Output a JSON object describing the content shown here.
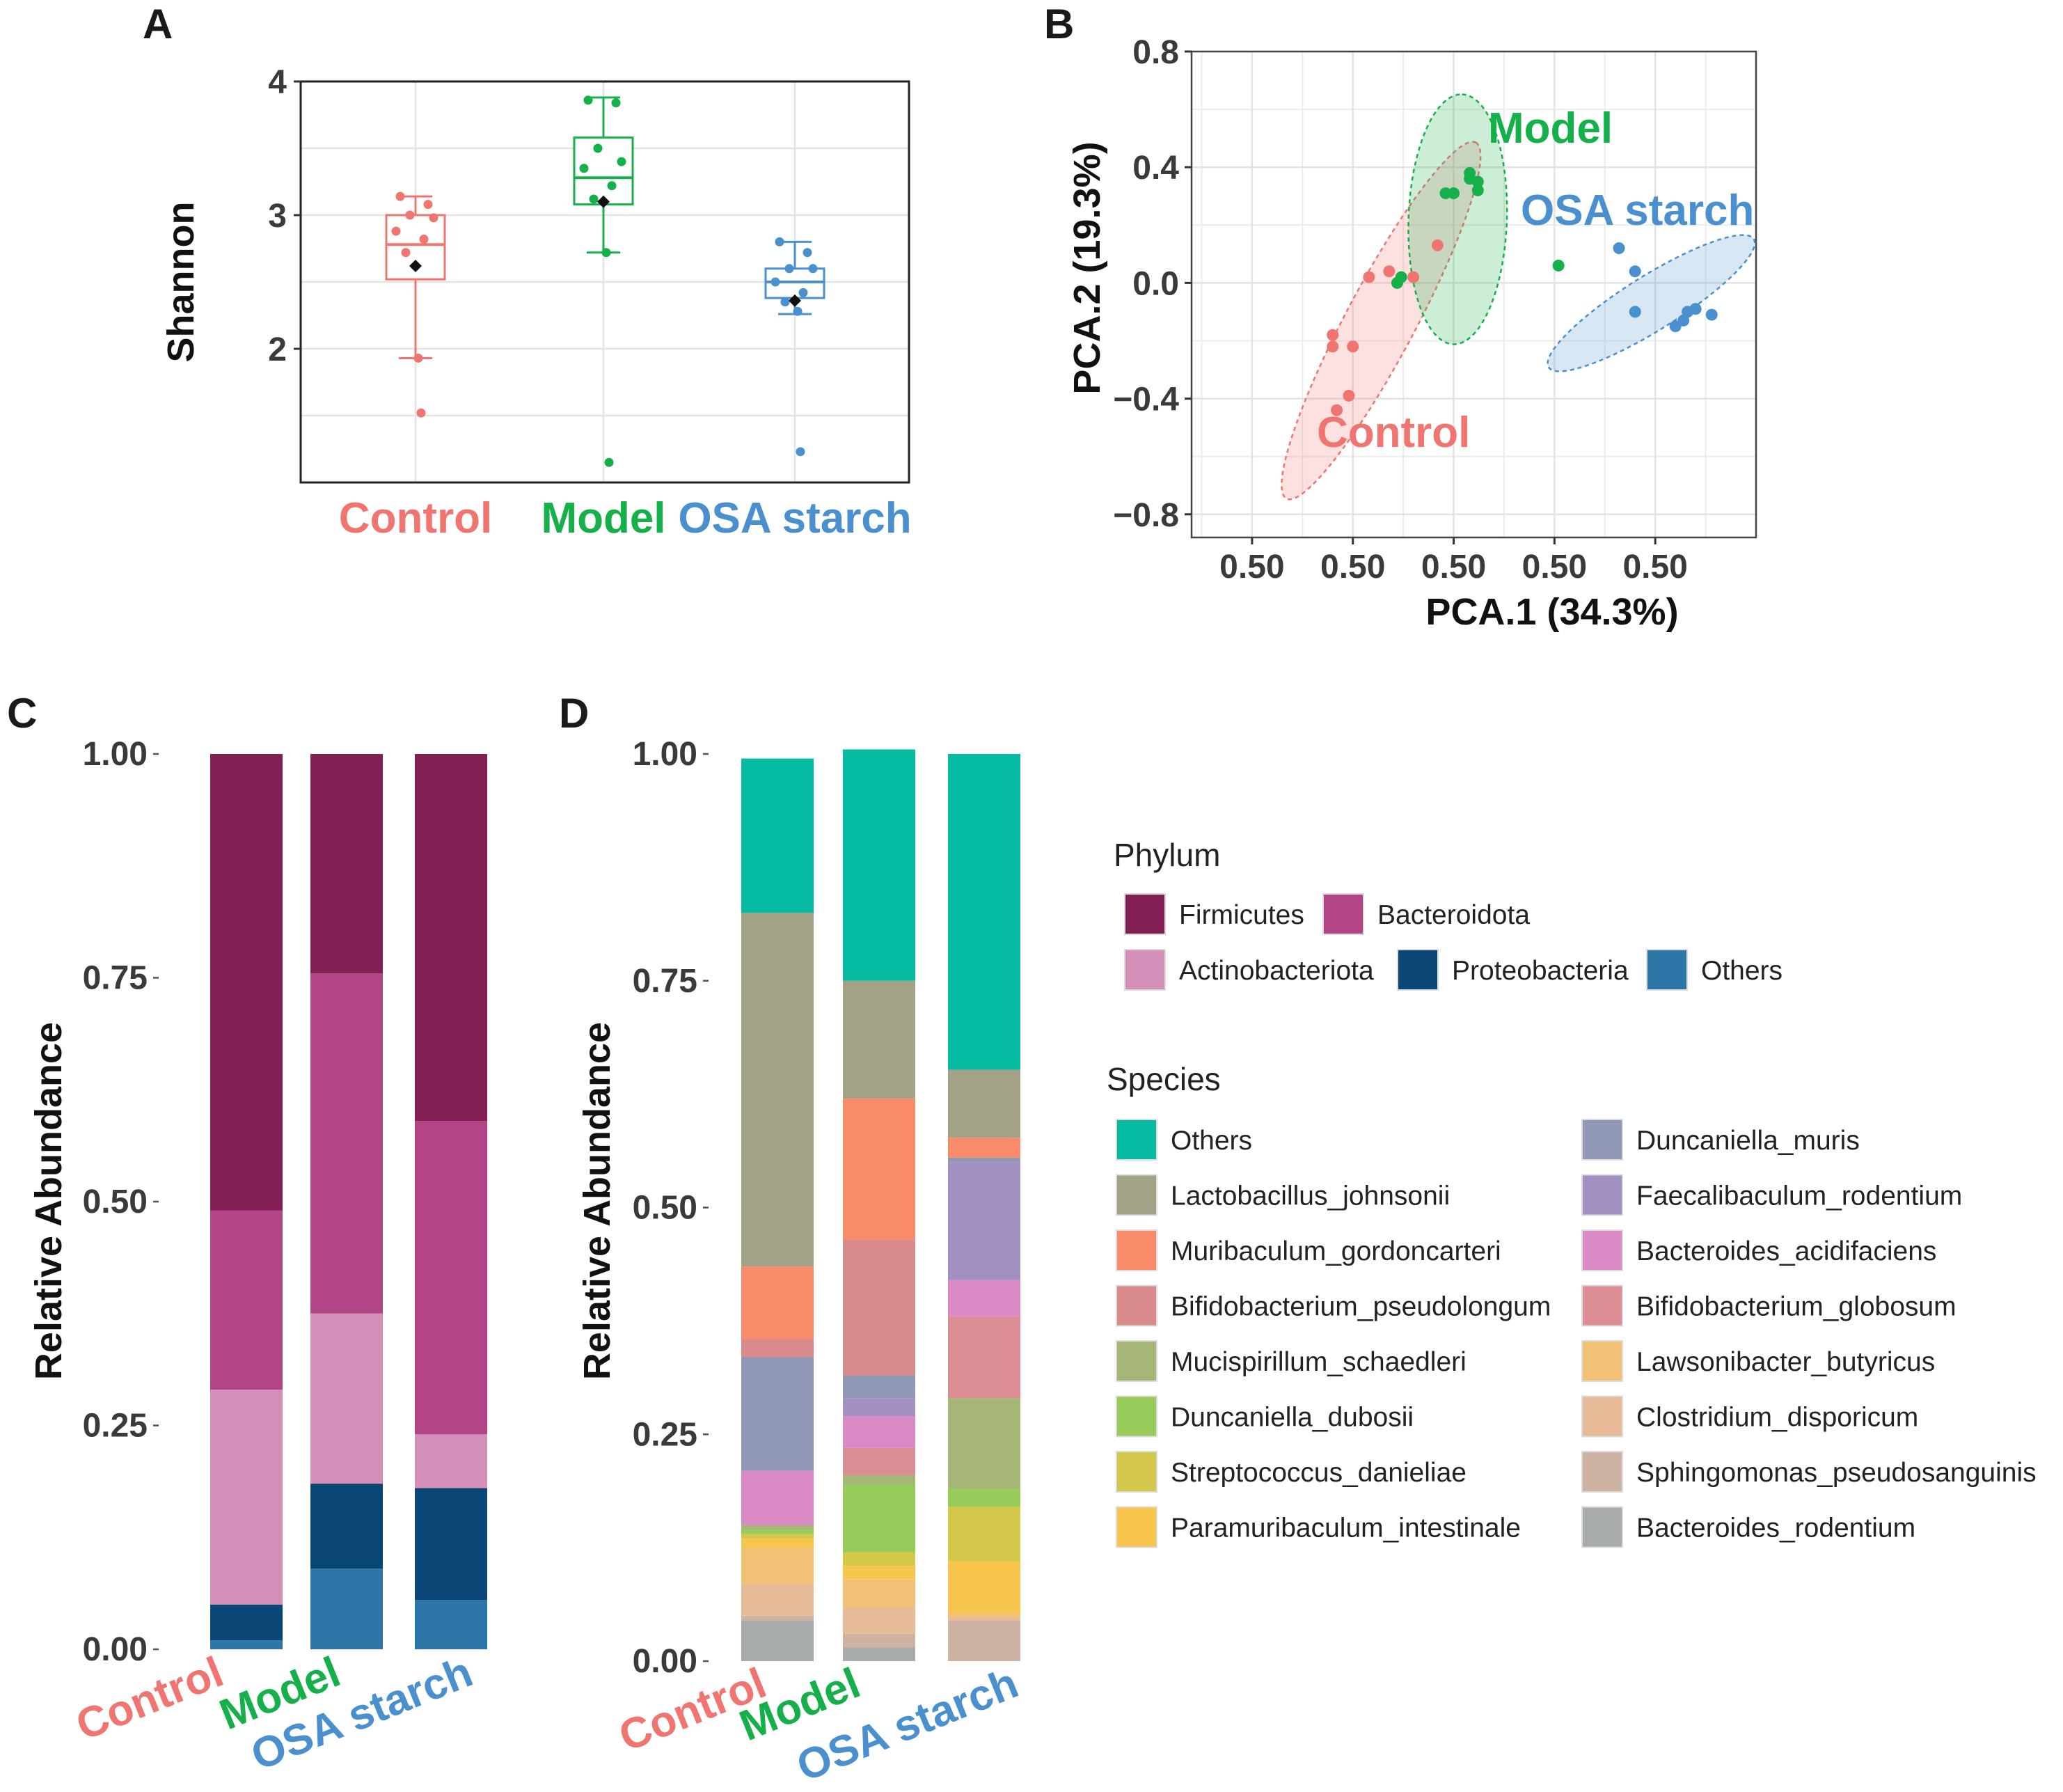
{
  "colors": {
    "control": "#f07570",
    "model": "#16b04b",
    "osa": "#4a90cf"
  },
  "chart_data": [
    {
      "panel": "A",
      "type": "box",
      "ylabel": "Shannon",
      "yticks": [
        2,
        3,
        4
      ],
      "ylim": [
        1.0,
        4.0
      ],
      "groups": [
        {
          "name": "Control",
          "color": "#f07570",
          "whisker_low": 1.93,
          "q1": 2.52,
          "median": 2.78,
          "q3": 3.0,
          "whisker_high": 3.14,
          "mean": 2.62,
          "points": [
            3.14,
            3.08,
            3.0,
            2.98,
            2.88,
            2.82,
            2.72,
            1.93,
            1.52
          ]
        },
        {
          "name": "Model",
          "color": "#16b04b",
          "whisker_low": 2.72,
          "q1": 3.08,
          "median": 3.28,
          "q3": 3.58,
          "whisker_high": 3.88,
          "mean": 3.1,
          "points": [
            3.86,
            3.84,
            3.5,
            3.4,
            3.35,
            3.22,
            3.12,
            2.72,
            1.15
          ]
        },
        {
          "name": "OSA starch",
          "color": "#4a90cf",
          "whisker_low": 2.26,
          "q1": 2.38,
          "median": 2.5,
          "q3": 2.6,
          "whisker_high": 2.8,
          "mean": 2.36,
          "points": [
            2.8,
            2.72,
            2.6,
            2.6,
            2.5,
            2.42,
            2.35,
            2.28,
            1.23
          ]
        }
      ]
    },
    {
      "panel": "B",
      "type": "scatter",
      "xlabel": "PCA.1 (34.3%)",
      "ylabel": "PCA.2 (19.3%)",
      "xtick_labels": [
        "0.50",
        "0.50",
        "0.50",
        "0.50",
        "0.50"
      ],
      "yticks": [
        "0.8",
        "0.4",
        "0.0",
        "−0.4",
        "−0.8"
      ],
      "xlim": [
        -0.65,
        0.75
      ],
      "ylim": [
        -0.88,
        0.8
      ],
      "groups": [
        {
          "name": "Control",
          "color": "#f07570",
          "points": [
            [
              -0.3,
              -0.18
            ],
            [
              -0.3,
              -0.22
            ],
            [
              -0.25,
              -0.22
            ],
            [
              -0.26,
              -0.39
            ],
            [
              -0.29,
              -0.44
            ],
            [
              -0.16,
              0.04
            ],
            [
              -0.1,
              0.02
            ],
            [
              -0.04,
              0.13
            ],
            [
              -0.21,
              0.02
            ]
          ],
          "ellipse": {
            "cx": -0.18,
            "cy": -0.13,
            "rx": 0.5,
            "ry": 0.12,
            "angle": -62
          }
        },
        {
          "name": "Model",
          "color": "#16b04b",
          "points": [
            [
              0.04,
              0.38
            ],
            [
              0.06,
              0.35
            ],
            [
              0.06,
              0.32
            ],
            [
              0.0,
              0.31
            ],
            [
              -0.02,
              0.31
            ],
            [
              0.04,
              0.36
            ],
            [
              -0.14,
              0.0
            ],
            [
              -0.13,
              0.02
            ],
            [
              0.26,
              0.06
            ]
          ],
          "ellipse": {
            "cx": 0.01,
            "cy": 0.22,
            "rx": 0.31,
            "ry": 0.17,
            "angle": -88
          }
        },
        {
          "name": "OSA starch",
          "color": "#4a90cf",
          "points": [
            [
              0.41,
              0.12
            ],
            [
              0.45,
              0.04
            ],
            [
              0.45,
              -0.1
            ],
            [
              0.55,
              -0.15
            ],
            [
              0.57,
              -0.13
            ],
            [
              0.58,
              -0.1
            ],
            [
              0.6,
              -0.09
            ],
            [
              0.64,
              -0.11
            ]
          ],
          "ellipse": {
            "cx": 0.49,
            "cy": -0.07,
            "rx": 0.3,
            "ry": 0.094,
            "angle": -32
          }
        }
      ],
      "labels": [
        {
          "text": "Model",
          "color": "#16b04b"
        },
        {
          "text": "OSA starch",
          "color": "#4a90cf"
        },
        {
          "text": "Control",
          "color": "#f07570"
        }
      ]
    },
    {
      "panel": "C",
      "type": "stacked_bar",
      "ylabel": "Relative Abundance",
      "yticks": [
        "0.00",
        "0.25",
        "0.50",
        "0.75",
        "1.00"
      ],
      "categories": [
        "Control",
        "Model",
        "OSA starch"
      ],
      "legend_title": "Phylum",
      "series": [
        {
          "name": "Others",
          "color": "#2c77a8",
          "values": [
            0.01,
            0.09,
            0.055
          ]
        },
        {
          "name": "Proteobacteria",
          "color": "#0a4777",
          "values": [
            0.04,
            0.095,
            0.125
          ]
        },
        {
          "name": "Actinobacteriota",
          "color": "#d38fb7",
          "values": [
            0.24,
            0.19,
            0.06
          ]
        },
        {
          "name": "Bacteroidota",
          "color": "#b24586",
          "values": [
            0.2,
            0.38,
            0.35
          ]
        },
        {
          "name": "Firmicutes",
          "color": "#822055",
          "values": [
            0.51,
            0.245,
            0.41
          ]
        }
      ],
      "legend_order": [
        "Firmicutes",
        "Bacteroidota",
        "Actinobacteriota",
        "Proteobacteria",
        "Others"
      ]
    },
    {
      "panel": "D",
      "type": "stacked_bar",
      "ylabel": "Relative Abundance",
      "yticks": [
        "0.00",
        "0.25",
        "0.50",
        "0.75",
        "1.00"
      ],
      "categories": [
        "Control",
        "Model",
        "OSA starch"
      ],
      "legend_title": "Species",
      "series": [
        {
          "name": "Bacteroides_rodentium",
          "color": "#a8abab",
          "values": [
            0.045,
            0.015,
            0.0
          ]
        },
        {
          "name": "Sphingomonas_pseudosanguinis",
          "color": "#ceb3a4",
          "values": [
            0.005,
            0.015,
            0.045
          ]
        },
        {
          "name": "Clostridium_disporicum",
          "color": "#e8bb98",
          "values": [
            0.035,
            0.03,
            0.003
          ]
        },
        {
          "name": "Lawsonibacter_butyricus",
          "color": "#f2c175",
          "values": [
            0.04,
            0.03,
            0.005
          ]
        },
        {
          "name": "Paramuribaculum_intestinale",
          "color": "#f7c54b",
          "values": [
            0.01,
            0.015,
            0.057
          ]
        },
        {
          "name": "Streptococcus_danieliae",
          "color": "#d4c84b",
          "values": [
            0.005,
            0.015,
            0.06
          ]
        },
        {
          "name": "Duncaniella_dubosii",
          "color": "#97cc5a",
          "values": [
            0.005,
            0.075,
            0.02
          ]
        },
        {
          "name": "Mucispirillum_schaedleri",
          "color": "#a5b677",
          "values": [
            0.005,
            0.01,
            0.1
          ]
        },
        {
          "name": "Bifidobacterium_globosum",
          "color": "#dd8d94",
          "values": [
            0.0,
            0.03,
            0.09
          ]
        },
        {
          "name": "Bacteroides_acidifaciens",
          "color": "#d989c3",
          "values": [
            0.06,
            0.035,
            0.04
          ]
        },
        {
          "name": "Faecalibaculum_rodentium",
          "color": "#a190c1",
          "values": [
            0.0,
            0.02,
            0.13
          ]
        },
        {
          "name": "Duncaniella_muris",
          "color": "#9098b6",
          "values": [
            0.125,
            0.025,
            0.005
          ]
        },
        {
          "name": "Bifidobacterium_pseudolongum",
          "color": "#d98a8a",
          "values": [
            0.02,
            0.15,
            0.0
          ]
        },
        {
          "name": "Muribaculum_gordoncarteri",
          "color": "#f98b6a",
          "values": [
            0.08,
            0.155,
            0.022
          ]
        },
        {
          "name": "Lactobacillus_johnsonii",
          "color": "#a3a286",
          "values": [
            0.39,
            0.13,
            0.075
          ]
        },
        {
          "name": "Others",
          "color": "#05bca3",
          "values": [
            0.17,
            0.255,
            0.348
          ]
        }
      ],
      "legend_order": [
        "Others",
        "Lactobacillus_johnsonii",
        "Muribaculum_gordoncarteri",
        "Bifidobacterium_pseudolongum",
        "Mucispirillum_schaedleri",
        "Duncaniella_dubosii",
        "Streptococcus_danieliae",
        "Paramuribaculum_intestinale",
        "Duncaniella_muris",
        "Faecalibaculum_rodentium",
        "Bacteroides_acidifaciens",
        "Bifidobacterium_globosum",
        "Lawsonibacter_butyricus",
        "Clostridium_disporicum",
        "Sphingomonas_pseudosanguinis",
        "Bacteroides_rodentium"
      ]
    }
  ]
}
